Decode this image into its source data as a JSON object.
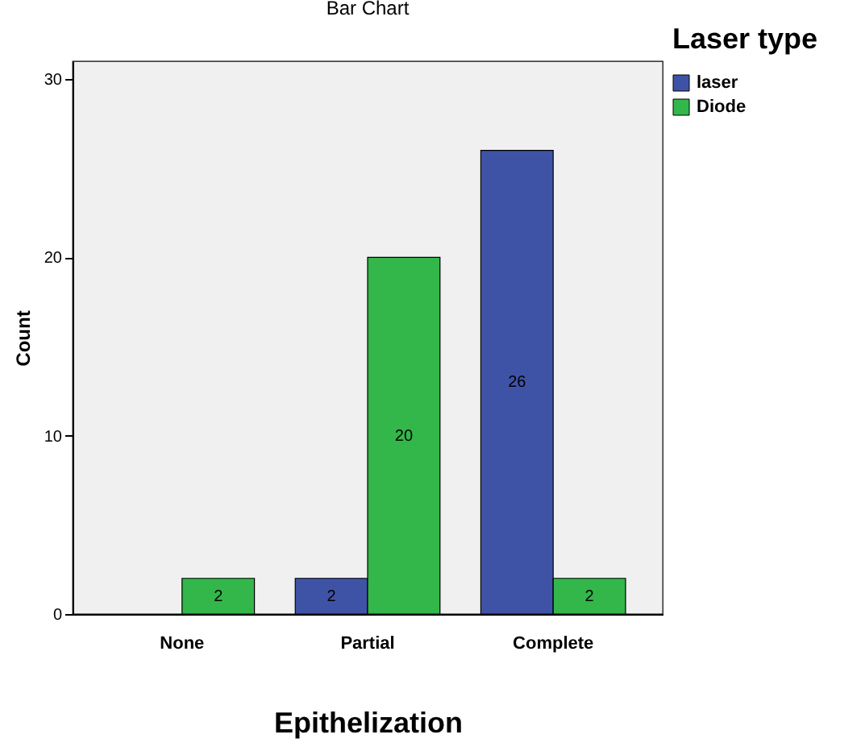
{
  "chart_data": {
    "type": "bar",
    "title": "Bar Chart",
    "xlabel": "Epithelization",
    "ylabel": "Count",
    "legend_title": "Laser type",
    "categories": [
      "None",
      "Partial",
      "Complete"
    ],
    "series": [
      {
        "name": "laser",
        "color": "#3f53a6",
        "values": [
          null,
          2,
          26
        ]
      },
      {
        "name": "Diode",
        "color": "#33b74a",
        "values": [
          2,
          20,
          2
        ]
      }
    ],
    "ylim": [
      0,
      31
    ],
    "yticks": [
      0,
      10,
      20,
      30
    ],
    "grid": false,
    "legend": "right",
    "data_labels": true
  }
}
